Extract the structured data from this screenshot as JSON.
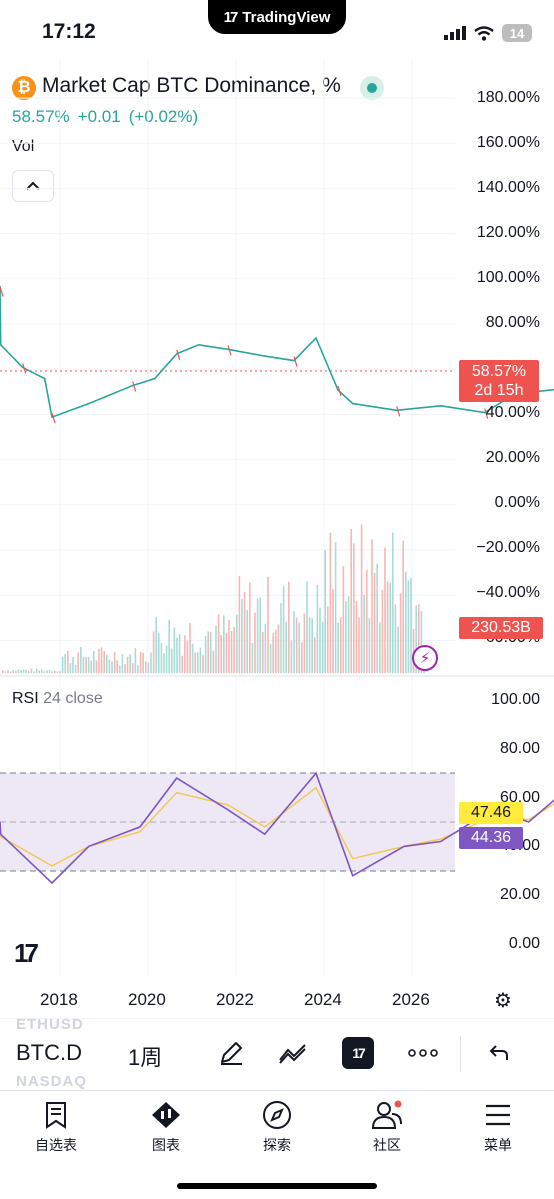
{
  "status_bar": {
    "time": "17:12",
    "island_brand": "TradingView",
    "island_logo": "17",
    "battery": "14"
  },
  "header": {
    "coin_icon": "bitcoin-icon",
    "title": "Market Cap BTC Dominance, %",
    "price": "58.57%",
    "change": "+0.01",
    "change_pct": "(+0.02%)",
    "vol_label": "Vol",
    "live_color": "#26a69a"
  },
  "main_chart": {
    "y_labels": [
      "180.00%",
      "160.00%",
      "140.00%",
      "120.00%",
      "100.00%",
      "80.00%",
      "58.57%",
      "40.00%",
      "20.00%",
      "0.00%",
      "−20.00%",
      "−40.00%",
      "−60.00%"
    ],
    "price_tag_value": "58.57%",
    "price_tag_countdown": "2d 15h",
    "volume_tag": "230.53B"
  },
  "rsi": {
    "label": "RSI",
    "params": "24 close",
    "y_labels": [
      "100.00",
      "80.00",
      "60.00",
      "40.00",
      "20.00",
      "0.00"
    ],
    "value_yellow": "47.46",
    "value_purple": "44.36"
  },
  "x_axis": {
    "labels": [
      "2018",
      "2020",
      "2022",
      "2024",
      "2026"
    ]
  },
  "toolbar": {
    "symbol": "BTC.D",
    "interval": "1周",
    "ghost_top": "ETHUSD",
    "ghost_bottom": "NASDAQ",
    "tv_logo": "17"
  },
  "bottom_nav": {
    "items": [
      {
        "label": "自选表",
        "icon": "watchlist-icon"
      },
      {
        "label": "图表",
        "icon": "chart-icon"
      },
      {
        "label": "探索",
        "icon": "compass-icon"
      },
      {
        "label": "社区",
        "icon": "community-icon"
      },
      {
        "label": "菜单",
        "icon": "menu-icon"
      }
    ]
  },
  "colors": {
    "up": "#26a69a",
    "down": "#ef5350",
    "rsi_line": "#7e57c2",
    "rsi_ma": "#f2c94c",
    "rsi_band": "#ede7f6"
  },
  "chart_data": [
    {
      "type": "line",
      "title": "Market Cap BTC Dominance, %",
      "x": [
        "2017-01",
        "2017-04",
        "2017-06",
        "2017-09",
        "2017-12",
        "2018-01",
        "2018-06",
        "2018-12",
        "2019-03",
        "2019-06",
        "2019-09",
        "2020-01",
        "2020-06",
        "2020-10",
        "2021-01",
        "2021-04",
        "2021-06",
        "2021-12",
        "2022-06",
        "2022-12",
        "2023-03",
        "2023-06",
        "2023-12",
        "2024-06",
        "2024-12",
        "2025-03",
        "2025-06",
        "2025-09",
        "2025-12",
        "2026-01"
      ],
      "values": [
        96,
        94,
        70,
        60,
        55,
        38,
        44,
        52,
        55,
        66,
        70,
        68,
        65,
        63,
        73,
        50,
        44,
        41,
        43,
        40,
        46,
        49,
        51,
        54,
        55,
        59,
        63,
        58,
        59,
        58.57
      ],
      "ylim": [
        -60,
        180
      ],
      "ylabel": "",
      "current_value": 58.57
    },
    {
      "type": "bar",
      "title": "Vol",
      "x": [
        "2017",
        "2018",
        "2019",
        "2020",
        "2021",
        "2022",
        "2023",
        "2024",
        "2025",
        "2026"
      ],
      "values": [
        5,
        30,
        70,
        110,
        170,
        110,
        70,
        120,
        180,
        230.53
      ],
      "unit": "B",
      "last_value": "230.53B"
    },
    {
      "type": "line",
      "title": "RSI 24 close",
      "series": [
        {
          "name": "RSI",
          "x": [
            "2017",
            "2017-06",
            "2018",
            "2018-06",
            "2019",
            "2019-06",
            "2020",
            "2020-06",
            "2021",
            "2021-06",
            "2022",
            "2022-06",
            "2023",
            "2023-06",
            "2024",
            "2024-06",
            "2025",
            "2025-06",
            "2026"
          ],
          "values": [
            50,
            45,
            25,
            40,
            48,
            68,
            55,
            45,
            70,
            28,
            40,
            42,
            55,
            50,
            68,
            62,
            66,
            58,
            44.36
          ]
        },
        {
          "name": "MA",
          "x": [
            "2017",
            "2017-06",
            "2018",
            "2018-06",
            "2019",
            "2019-06",
            "2020",
            "2020-06",
            "2021",
            "2021-06",
            "2022",
            "2022-06",
            "2023",
            "2023-06",
            "2024",
            "2024-06",
            "2025",
            "2025-06",
            "2026"
          ],
          "values": [
            48,
            44,
            32,
            40,
            46,
            62,
            57,
            48,
            64,
            35,
            40,
            43,
            52,
            51,
            64,
            62,
            64,
            60,
            47.46
          ]
        }
      ],
      "ylim": [
        0,
        100
      ],
      "bands": [
        30,
        50,
        70
      ]
    }
  ]
}
